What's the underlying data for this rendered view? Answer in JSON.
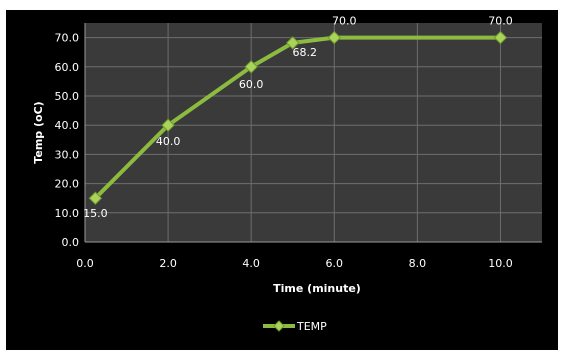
{
  "chart_data": {
    "type": "line",
    "title": "",
    "xlabel": "Time (minute)",
    "ylabel": "Temp (oC)",
    "xlim": [
      0,
      11
    ],
    "ylim": [
      0,
      75
    ],
    "x_ticks": [
      0,
      2,
      4,
      6,
      8,
      10
    ],
    "x_tick_labels": [
      "0.0",
      "2.0",
      "4.0",
      "6.0",
      "8.0",
      "10.0"
    ],
    "y_ticks": [
      0,
      10,
      20,
      30,
      40,
      50,
      60,
      70
    ],
    "y_tick_labels": [
      "0.0",
      "10.0",
      "20.0",
      "30.0",
      "40.0",
      "50.0",
      "60.0",
      "70.0"
    ],
    "grid": true,
    "legend_position": "bottom",
    "series": [
      {
        "name": "TEMP",
        "color": "#8dbb3f",
        "marker": "diamond",
        "x": [
          0.25,
          2,
          4,
          5,
          6,
          10
        ],
        "y": [
          15.0,
          40.0,
          60.0,
          68.2,
          70.0,
          70.0
        ],
        "data_labels": [
          "15.0",
          "40.0",
          "60.0",
          "68.2",
          "70.0",
          "70.0"
        ]
      }
    ]
  },
  "colors": {
    "background": "#000000",
    "plot_area": "#3a3a3a",
    "gridline": "#6e6e6e",
    "text": "#ffffff"
  }
}
